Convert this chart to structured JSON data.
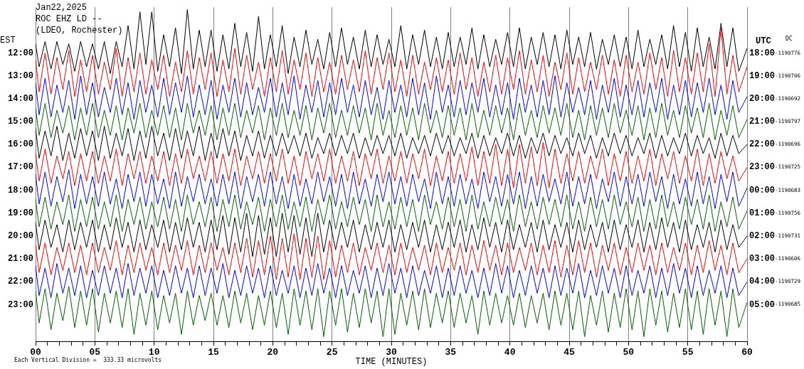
{
  "chart_data": {
    "type": "line",
    "title": "Jan22,2025",
    "subtitle": "ROC EHZ LD --",
    "annotations": [
      "(LDEO, Rochester)",
      "Each Vertical Division =  333.33 microvolts",
      "UTC",
      "DC",
      "18:00",
      "-1190776",
      "19:00",
      "-1190706",
      "20:00",
      "-1190692",
      "21:00",
      "-1190797",
      "22:00",
      "-1190696",
      "23:00",
      "-1190725",
      "00:00",
      "-1190683",
      "01:00",
      "-1190756",
      "02:00",
      "-1190731",
      "03:00",
      "-1190606",
      "04:00",
      "-1190729",
      "05:00",
      "-1190685"
    ],
    "xlabel": "TIME (MINUTES)",
    "ylabel": "EST",
    "x": [
      0,
      0.3,
      0.8,
      1.3,
      1.8,
      2.3,
      2.8,
      3.3,
      3.8,
      4.3,
      4.8,
      5.3,
      5.8,
      6.3,
      6.8,
      7.3,
      7.8,
      8.3,
      8.8,
      9.3,
      9.8,
      10.3,
      10.8,
      11.3,
      11.8,
      12.3,
      12.8,
      13.3,
      13.8,
      14.3,
      14.8,
      15.3,
      15.8,
      16.3,
      16.8,
      17.3,
      17.8,
      18.3,
      18.8,
      19.3,
      19.8,
      20.3,
      20.8,
      21.3,
      21.8,
      22.3,
      22.8,
      23.3,
      23.8,
      24.3,
      24.8,
      25.3,
      25.8,
      26.3,
      26.8,
      27.3,
      27.8,
      28.3,
      28.8,
      29.3,
      29.8,
      30.3,
      30.8,
      31.3,
      31.8,
      32.3,
      32.8,
      33.3,
      33.8,
      34.3,
      34.8,
      35.3,
      35.8,
      36.3,
      36.8,
      37.3,
      37.8,
      38.3,
      38.8,
      39.3,
      39.8,
      40.3,
      40.8,
      41.3,
      41.8,
      42.3,
      42.8,
      43.3,
      43.8,
      44.3,
      44.8,
      45.3,
      45.8,
      46.3,
      46.8,
      47.3,
      47.8,
      48.3,
      48.8,
      49.3,
      49.8,
      50.3,
      50.8,
      51.3,
      51.8,
      52.3,
      52.8,
      53.3,
      53.8,
      54.3,
      54.8,
      55.3,
      55.8,
      56.3,
      56.8,
      57.3,
      57.8,
      58.3,
      58.8,
      59.3,
      60
    ],
    "xlim": [
      0,
      60
    ],
    "xticks": [
      {
        "value": 0,
        "label": "00"
      },
      {
        "value": 1,
        "label": null
      },
      {
        "value": 2,
        "label": null
      },
      {
        "value": 3,
        "label": null
      },
      {
        "value": 4,
        "label": null
      },
      {
        "value": 5,
        "label": "05"
      },
      {
        "value": 6,
        "label": null
      },
      {
        "value": 7,
        "label": null
      },
      {
        "value": 8,
        "label": null
      },
      {
        "value": 9,
        "label": null
      },
      10,
      {
        "value": 11,
        "label": null
      },
      {
        "value": 12,
        "label": null
      },
      {
        "value": 13,
        "label": null
      },
      {
        "value": 14,
        "label": null
      },
      15,
      {
        "value": 16,
        "label": null
      },
      {
        "value": 17,
        "label": null
      },
      {
        "value": 18,
        "label": null
      },
      {
        "value": 19,
        "label": null
      },
      20,
      {
        "value": 21,
        "label": null
      },
      {
        "value": 22,
        "label": null
      },
      {
        "value": 23,
        "label": null
      },
      {
        "value": 24,
        "label": null
      },
      25,
      {
        "value": 26,
        "label": null
      },
      {
        "value": 27,
        "label": null
      },
      {
        "value": 28,
        "label": null
      },
      {
        "value": 29,
        "label": null
      },
      30,
      {
        "value": 31,
        "label": null
      },
      {
        "value": 32,
        "label": null
      },
      {
        "value": 33,
        "label": null
      },
      {
        "value": 34,
        "label": null
      },
      35,
      {
        "value": 36,
        "label": null
      },
      {
        "value": 37,
        "label": null
      },
      {
        "value": 38,
        "label": null
      },
      {
        "value": 39,
        "label": null
      },
      40,
      {
        "value": 41,
        "label": null
      },
      {
        "value": 42,
        "label": null
      },
      {
        "value": 43,
        "label": null
      },
      {
        "value": 44,
        "label": null
      },
      45,
      {
        "value": 46,
        "label": null
      },
      {
        "value": 47,
        "label": null
      },
      {
        "value": 48,
        "label": null
      },
      {
        "value": 49,
        "label": null
      },
      50,
      {
        "value": 51,
        "label": null
      },
      {
        "value": 52,
        "label": null
      },
      {
        "value": 53,
        "label": null
      },
      {
        "value": 54,
        "label": null
      },
      55,
      {
        "value": 56,
        "label": null
      },
      {
        "value": 57,
        "label": null
      },
      {
        "value": 58,
        "label": null
      },
      {
        "value": 59,
        "label": null
      },
      60
    ],
    "ylim": [
      24.6,
      10.0
    ],
    "yticks": [
      {
        "value": 12,
        "label": "12:00"
      },
      {
        "value": 13,
        "label": "13:00"
      },
      {
        "value": 14,
        "label": "14:00"
      },
      {
        "value": 15,
        "label": "15:00"
      },
      {
        "value": 16,
        "label": "16:00"
      },
      {
        "value": 17,
        "label": "17:00"
      },
      {
        "value": 18,
        "label": "18:00"
      },
      {
        "value": 19,
        "label": "19:00"
      },
      {
        "value": 20,
        "label": "20:00"
      },
      {
        "value": 21,
        "label": "21:00"
      },
      {
        "value": 22,
        "label": "22:00"
      },
      {
        "value": 23,
        "label": "23:00"
      }
    ],
    "grid": "x",
    "series": [
      {
        "color": "#000000",
        "values": [
          11.6,
          12.6,
          11.5,
          12.7,
          11.5,
          12.5,
          11.6,
          12.8,
          11.5,
          12.6,
          11.6,
          12.7,
          11.5,
          12.9,
          11.5,
          12.6,
          10.8,
          12.7,
          10.2,
          12.5,
          10.2,
          12.8,
          11.2,
          12.6,
          10.9,
          12.9,
          10.1,
          12.7,
          11.0,
          12.6,
          11.0,
          12.8,
          11.2,
          12.7,
          10.7,
          12.6,
          11.1,
          12.8,
          10.4,
          12.7,
          11.2,
          12.6,
          10.8,
          12.9,
          11.3,
          12.6,
          11.0,
          12.5,
          11.4,
          12.7,
          11.1,
          12.6,
          10.9,
          12.5,
          11.3,
          12.7,
          11.0,
          12.6,
          11.2,
          12.5,
          11.4,
          12.6,
          10.8,
          12.7,
          11.2,
          12.5,
          11.0,
          12.6,
          11.3,
          12.7,
          11.1,
          12.6,
          11.3,
          12.5,
          10.9,
          12.7,
          11.2,
          12.6,
          11.4,
          12.5,
          11.1,
          12.6,
          10.9,
          12.7,
          11.3,
          12.5,
          11.1,
          12.6,
          11.2,
          12.7,
          11.0,
          12.5,
          11.3,
          12.6,
          11.1,
          12.7,
          11.4,
          12.5,
          11.2,
          12.6,
          11.3,
          12.7,
          11.0,
          12.6,
          11.4,
          12.5,
          11.2,
          12.7,
          10.8,
          12.6,
          11.1,
          12.8,
          10.9,
          12.6,
          11.3,
          12.7,
          10.7,
          12.6,
          10.9,
          12.8,
          11.8
        ]
      },
      {
        "color": "#ff0000",
        "values": [
          12.3,
          13.7,
          12.0,
          13.8,
          12.2,
          13.6,
          11.9,
          13.9,
          12.3,
          13.7,
          12.1,
          13.8,
          12.4,
          13.6,
          11.8,
          13.9,
          12.2,
          13.7,
          12.0,
          13.8,
          12.3,
          13.6,
          12.1,
          13.9,
          12.4,
          13.7,
          11.9,
          13.8,
          12.2,
          13.6,
          12.0,
          13.9,
          12.3,
          13.7,
          11.8,
          13.8,
          12.1,
          13.6,
          12.4,
          13.9,
          12.2,
          13.7,
          11.9,
          13.8,
          12.3,
          13.6,
          12.0,
          13.9,
          12.2,
          13.7,
          12.4,
          13.8,
          12.1,
          13.6,
          12.3,
          13.7,
          11.9,
          13.8,
          12.2,
          13.6,
          12.0,
          13.7,
          12.3,
          13.9,
          12.1,
          13.8,
          12.4,
          13.6,
          12.2,
          13.7,
          12.3,
          13.8,
          12.0,
          13.6,
          12.2,
          13.9,
          12.4,
          13.7,
          12.1,
          13.8,
          12.2,
          13.6,
          11.9,
          13.8,
          12.3,
          13.7,
          12.1,
          13.9,
          12.4,
          13.6,
          12.0,
          13.8,
          12.2,
          13.7,
          12.4,
          13.6,
          12.1,
          13.8,
          12.3,
          13.9,
          12.1,
          13.7,
          12.4,
          13.8,
          12.0,
          13.6,
          12.2,
          13.9,
          11.9,
          13.7,
          12.2,
          13.8,
          12.0,
          13.7,
          11.6,
          13.9,
          10.9,
          13.8,
          12.1,
          13.7,
          12.6
        ]
      },
      {
        "color": "#0000ff",
        "values": [
          13.3,
          14.7,
          13.1,
          14.8,
          13.4,
          14.6,
          13.2,
          14.9,
          13.0,
          14.7,
          13.3,
          14.8,
          13.5,
          14.6,
          13.1,
          14.7,
          13.3,
          14.9,
          13.2,
          14.6,
          13.4,
          14.8,
          13.1,
          14.7,
          13.3,
          14.6,
          13.0,
          14.8,
          13.4,
          14.7,
          13.2,
          14.9,
          13.4,
          14.6,
          13.1,
          14.8,
          13.3,
          14.7,
          13.5,
          14.6,
          13.1,
          14.8,
          13.3,
          14.7,
          13.0,
          14.9,
          13.4,
          14.6,
          13.2,
          14.8,
          13.3,
          14.7,
          13.1,
          14.6,
          13.4,
          14.8,
          13.2,
          14.7,
          13.5,
          14.9,
          13.2,
          14.6,
          13.4,
          14.8,
          13.1,
          14.7,
          13.3,
          14.9,
          13.0,
          14.6,
          13.4,
          14.8,
          13.2,
          14.7,
          13.3,
          14.6,
          13.1,
          14.8,
          13.4,
          14.7,
          13.3,
          14.9,
          13.1,
          14.6,
          13.4,
          14.8,
          13.2,
          14.7,
          13.0,
          14.8,
          13.3,
          14.6,
          13.5,
          14.7,
          13.2,
          14.9,
          13.4,
          14.6,
          13.1,
          14.8,
          13.4,
          14.7,
          13.2,
          14.8,
          13.3,
          14.6,
          13.1,
          14.9,
          13.4,
          14.7,
          13.2,
          14.8,
          13.3,
          14.6,
          13.1,
          14.7,
          13.4,
          14.9,
          13.2,
          14.6,
          13.9
        ]
      },
      {
        "color": "#006400",
        "values": [
          14.4,
          15.6,
          14.2,
          15.7,
          14.5,
          15.5,
          14.3,
          15.8,
          14.4,
          15.6,
          14.2,
          15.7,
          14.5,
          15.6,
          14.3,
          15.8,
          14.4,
          15.5,
          14.2,
          15.7,
          14.5,
          15.6,
          14.3,
          15.7,
          14.4,
          15.8,
          14.2,
          15.5,
          14.5,
          15.6,
          14.3,
          15.8,
          14.4,
          15.6,
          14.2,
          15.7,
          14.5,
          15.5,
          14.3,
          15.8,
          14.4,
          15.6,
          14.2,
          15.7,
          14.5,
          15.6,
          14.3,
          15.8,
          14.4,
          15.5,
          14.2,
          15.7,
          14.5,
          15.6,
          14.3,
          15.5,
          14.4,
          15.8,
          14.2,
          15.6,
          14.5,
          15.7,
          14.3,
          15.6,
          14.4,
          15.8,
          14.2,
          15.5,
          14.5,
          15.7,
          14.3,
          15.6,
          14.4,
          15.8,
          14.2,
          15.7,
          14.5,
          15.6,
          14.3,
          15.5,
          14.4,
          15.8,
          14.2,
          15.6,
          14.5,
          15.7,
          14.3,
          15.5,
          14.4,
          15.6,
          14.2,
          15.7,
          14.5,
          15.8,
          14.3,
          15.6,
          14.4,
          15.7,
          14.2,
          15.5,
          14.5,
          15.6,
          14.3,
          15.8,
          14.4,
          15.7,
          14.2,
          15.6,
          14.5,
          15.7,
          14.3,
          15.5,
          14.4,
          15.7,
          14.2,
          15.8,
          14.5,
          15.6,
          14.3,
          15.7,
          14.9
        ]
      },
      {
        "color": "#000000",
        "values": [
          15.3,
          16.6,
          15.4,
          16.5,
          15.2,
          16.7,
          15.5,
          16.6,
          15.3,
          16.5,
          15.4,
          16.7,
          15.2,
          16.6,
          15.5,
          16.5,
          15.3,
          16.7,
          15.4,
          16.6,
          15.2,
          16.5,
          15.5,
          16.7,
          15.3,
          16.6,
          15.4,
          16.5,
          15.2,
          16.7,
          15.5,
          16.6,
          15.3,
          16.5,
          15.4,
          16.7,
          15.6,
          16.5,
          15.4,
          16.6,
          15.6,
          16.5,
          15.5,
          16.4,
          15.6,
          16.5,
          15.5,
          16.6,
          15.7,
          16.4,
          15.5,
          16.5,
          15.6,
          16.4,
          15.5,
          16.6,
          15.7,
          16.5,
          15.6,
          16.4,
          15.6,
          16.5,
          15.5,
          16.6,
          15.7,
          16.4,
          15.6,
          16.5,
          15.5,
          16.4,
          15.6,
          16.5,
          15.7,
          16.4,
          15.5,
          16.6,
          15.6,
          16.5,
          15.7,
          16.4,
          15.5,
          16.5,
          15.6,
          16.6,
          15.7,
          16.4,
          15.5,
          16.5,
          15.6,
          16.4,
          15.7,
          16.5,
          15.5,
          16.4,
          15.6,
          16.6,
          15.7,
          16.5,
          15.5,
          16.4,
          15.6,
          16.5,
          15.7,
          16.4,
          15.5,
          16.6,
          15.6,
          16.5,
          15.7,
          16.4,
          15.5,
          16.5,
          15.6,
          16.4,
          15.7,
          16.6,
          15.5,
          16.5,
          15.6,
          16.4,
          16.0
        ]
      },
      {
        "color": "#ff0000",
        "values": [
          16.4,
          17.6,
          16.2,
          17.7,
          16.5,
          17.5,
          16.3,
          17.8,
          16.4,
          17.6,
          16.3,
          17.7,
          16.5,
          17.6,
          16.2,
          17.8,
          16.4,
          17.5,
          16.3,
          17.7,
          16.5,
          17.6,
          16.3,
          17.8,
          16.4,
          17.7,
          16.2,
          17.5,
          16.5,
          17.6,
          16.3,
          17.7,
          16.4,
          17.6,
          16.2,
          17.8,
          16.5,
          17.5,
          16.3,
          17.7,
          16.4,
          17.6,
          16.2,
          17.7,
          16.5,
          17.8,
          16.3,
          17.5,
          16.4,
          17.6,
          16.2,
          17.7,
          16.5,
          17.6,
          16.3,
          17.8,
          16.4,
          17.5,
          16.2,
          17.7,
          16.5,
          17.6,
          16.3,
          17.7,
          16.4,
          17.5,
          16.2,
          17.8,
          16.5,
          17.6,
          16.3,
          17.7,
          16.4,
          17.6,
          16.1,
          17.8,
          16.3,
          17.7,
          16.0,
          17.8,
          16.2,
          17.9,
          16.0,
          17.7,
          16.1,
          17.8,
          15.9,
          17.9,
          16.2,
          17.7,
          16.4,
          17.6,
          16.3,
          17.7,
          16.5,
          17.5,
          16.2,
          17.8,
          16.4,
          17.6,
          16.3,
          17.7,
          16.5,
          17.6,
          16.2,
          17.8,
          16.4,
          17.5,
          16.3,
          17.7,
          16.5,
          17.6,
          16.2,
          17.8,
          16.4,
          17.7,
          16.3,
          17.5,
          16.5,
          17.6,
          17.0
        ]
      },
      {
        "color": "#0000ff",
        "values": [
          17.3,
          18.6,
          17.2,
          18.7,
          17.4,
          18.5,
          17.1,
          18.8,
          17.3,
          18.6,
          17.4,
          18.7,
          17.2,
          18.6,
          17.5,
          18.8,
          17.3,
          18.5,
          17.2,
          18.7,
          17.3,
          18.6,
          17.5,
          18.8,
          17.2,
          18.7,
          17.4,
          18.5,
          17.3,
          18.6,
          17.5,
          18.7,
          17.3,
          18.6,
          17.2,
          18.8,
          17.4,
          18.5,
          17.3,
          18.7,
          17.2,
          18.6,
          17.4,
          18.8,
          17.3,
          18.7,
          17.5,
          18.6,
          17.2,
          18.5,
          17.4,
          18.7,
          17.3,
          18.8,
          17.2,
          18.6,
          17.5,
          18.7,
          17.3,
          18.5,
          17.2,
          18.6,
          17.4,
          18.7,
          17.3,
          18.5,
          17.5,
          18.8,
          17.2,
          18.6,
          17.4,
          18.7,
          17.3,
          18.6,
          17.5,
          18.8,
          17.2,
          18.5,
          17.4,
          18.7,
          17.3,
          18.6,
          17.2,
          18.8,
          17.4,
          18.7,
          17.3,
          18.5,
          17.5,
          18.6,
          17.2,
          18.7,
          17.4,
          18.6,
          17.3,
          18.8,
          17.5,
          18.5,
          17.2,
          18.7,
          17.4,
          18.6,
          17.3,
          18.7,
          17.2,
          18.5,
          17.4,
          18.8,
          17.3,
          18.6,
          17.5,
          18.7,
          17.2,
          18.6,
          17.4,
          18.8,
          17.3,
          18.5,
          17.2,
          18.7,
          17.9
        ]
      },
      {
        "color": "#006400",
        "values": [
          18.4,
          19.6,
          18.3,
          19.7,
          18.5,
          19.5,
          18.2,
          19.8,
          18.4,
          19.6,
          18.3,
          19.7,
          18.5,
          19.6,
          18.2,
          19.8,
          18.4,
          19.5,
          18.3,
          19.7,
          18.5,
          19.6,
          18.3,
          19.7,
          18.4,
          19.8,
          18.2,
          19.5,
          18.5,
          19.6,
          18.3,
          19.8,
          18.4,
          19.6,
          18.2,
          19.7,
          18.5,
          19.5,
          18.3,
          19.8,
          18.4,
          19.6,
          18.2,
          19.7,
          18.5,
          19.6,
          18.3,
          19.8,
          18.4,
          19.5,
          18.2,
          19.7,
          18.5,
          19.6,
          18.3,
          19.5,
          18.4,
          19.8,
          18.2,
          19.6,
          18.5,
          19.7,
          18.3,
          19.6,
          18.4,
          19.8,
          18.2,
          19.5,
          18.5,
          19.7,
          18.3,
          19.6,
          18.4,
          19.8,
          18.2,
          19.7,
          18.5,
          19.6,
          18.3,
          19.5,
          18.4,
          19.8,
          18.2,
          19.6,
          18.5,
          19.7,
          18.3,
          19.5,
          18.4,
          19.6,
          18.2,
          19.7,
          18.5,
          19.8,
          18.3,
          19.6,
          18.4,
          19.7,
          18.2,
          19.5,
          18.5,
          19.6,
          18.3,
          19.8,
          18.4,
          19.7,
          18.2,
          19.6,
          18.5,
          19.7,
          18.3,
          19.5,
          18.4,
          19.7,
          18.2,
          19.8,
          18.5,
          19.6,
          18.3,
          19.7,
          18.9
        ]
      },
      {
        "color": "#000000",
        "values": [
          19.4,
          20.6,
          19.3,
          20.5,
          19.5,
          20.7,
          19.3,
          20.6,
          19.4,
          20.5,
          19.3,
          20.7,
          19.5,
          20.6,
          19.2,
          20.5,
          19.4,
          20.7,
          19.3,
          20.6,
          19.5,
          20.5,
          19.3,
          20.7,
          19.4,
          20.6,
          19.2,
          20.5,
          19.4,
          20.7,
          19.3,
          20.6,
          19.1,
          20.8,
          19.2,
          20.7,
          19.0,
          20.9,
          19.1,
          20.8,
          19.2,
          20.9,
          19.0,
          20.7,
          19.1,
          20.8,
          19.2,
          20.9,
          19.0,
          20.7,
          19.3,
          20.6,
          19.4,
          20.5,
          19.3,
          20.7,
          19.5,
          20.6,
          19.4,
          20.5,
          19.3,
          20.7,
          19.5,
          20.6,
          19.4,
          20.5,
          19.3,
          20.7,
          19.5,
          20.6,
          19.4,
          20.5,
          19.3,
          20.7,
          19.5,
          20.6,
          19.2,
          20.5,
          19.4,
          20.7,
          19.3,
          20.6,
          19.5,
          20.5,
          19.4,
          20.7,
          19.3,
          20.6,
          19.5,
          20.5,
          19.4,
          20.7,
          19.3,
          20.6,
          19.5,
          20.5,
          19.4,
          20.7,
          19.3,
          20.6,
          19.5,
          20.5,
          19.3,
          20.7,
          19.4,
          20.6,
          19.2,
          20.5,
          19.4,
          20.7,
          19.3,
          20.6,
          19.5,
          20.5,
          19.4,
          20.7,
          19.3,
          20.6,
          19.5,
          20.5,
          20.0
        ]
      },
      {
        "color": "#ff0000",
        "values": [
          20.4,
          21.6,
          20.3,
          21.7,
          20.5,
          21.5,
          20.3,
          21.6,
          20.4,
          21.7,
          20.3,
          21.6,
          20.5,
          21.5,
          20.2,
          21.7,
          20.4,
          21.6,
          20.3,
          21.5,
          20.5,
          21.7,
          20.3,
          21.6,
          20.4,
          21.5,
          20.2,
          21.7,
          20.4,
          21.6,
          20.3,
          21.5,
          20.5,
          21.7,
          20.3,
          21.6,
          20.1,
          21.8,
          20.2,
          21.7,
          20.0,
          21.9,
          20.1,
          21.8,
          19.9,
          21.9,
          20.1,
          21.8,
          20.0,
          21.9,
          20.2,
          21.8,
          20.4,
          21.6,
          20.3,
          21.7,
          20.5,
          21.5,
          20.3,
          21.6,
          20.4,
          21.7,
          20.3,
          21.6,
          20.5,
          21.5,
          20.4,
          21.7,
          20.3,
          21.6,
          20.5,
          21.5,
          20.3,
          21.7,
          20.4,
          21.6,
          20.2,
          21.5,
          20.4,
          21.7,
          20.3,
          21.6,
          20.5,
          21.5,
          20.3,
          21.7,
          20.4,
          21.6,
          20.2,
          21.8,
          20.4,
          21.7,
          20.2,
          21.6,
          20.3,
          21.8,
          20.4,
          21.5,
          20.3,
          21.7,
          20.5,
          21.6,
          20.3,
          21.5,
          20.4,
          21.7,
          20.3,
          21.6,
          20.5,
          21.5,
          20.3,
          21.7,
          20.4,
          21.6,
          20.2,
          21.5,
          20.4,
          21.7,
          20.3,
          21.6,
          21.0
        ]
      },
      {
        "color": "#0000ff",
        "values": [
          21.3,
          22.6,
          21.4,
          22.7,
          21.2,
          22.5,
          21.4,
          22.6,
          21.3,
          22.7,
          21.5,
          22.6,
          21.3,
          22.5,
          21.4,
          22.7,
          21.2,
          22.6,
          21.4,
          22.5,
          21.3,
          22.7,
          21.5,
          22.6,
          21.3,
          22.5,
          21.4,
          22.7,
          21.3,
          22.6,
          21.4,
          22.5,
          21.2,
          22.7,
          21.5,
          22.6,
          21.3,
          22.5,
          21.4,
          22.7,
          21.3,
          22.6,
          21.5,
          22.5,
          21.3,
          22.7,
          21.4,
          22.6,
          21.2,
          22.5,
          21.4,
          22.7,
          21.3,
          22.6,
          21.5,
          22.5,
          21.3,
          22.7,
          21.4,
          22.6,
          21.2,
          22.5,
          21.4,
          22.7,
          21.3,
          22.6,
          21.5,
          22.5,
          21.3,
          22.7,
          21.4,
          22.6,
          21.3,
          22.5,
          21.5,
          22.7,
          21.4,
          22.6,
          21.2,
          22.5,
          21.3,
          22.7,
          21.5,
          22.6,
          21.3,
          22.5,
          21.4,
          22.7,
          21.3,
          22.6,
          21.4,
          22.5,
          21.2,
          22.7,
          21.5,
          22.6,
          21.3,
          22.5,
          21.4,
          22.7,
          21.3,
          22.6,
          21.5,
          22.5,
          21.3,
          22.7,
          21.4,
          22.6,
          21.2,
          22.5,
          21.4,
          22.7,
          21.3,
          22.6,
          21.5,
          22.5,
          21.3,
          22.7,
          21.4,
          22.6,
          22.0
        ]
      },
      {
        "color": "#006400",
        "values": [
          22.4,
          23.8,
          22.3,
          24.1,
          22.5,
          23.7,
          22.2,
          24.0,
          22.4,
          23.9,
          22.3,
          24.2,
          22.5,
          23.8,
          22.4,
          24.0,
          22.3,
          24.3,
          22.5,
          23.9,
          22.4,
          24.1,
          22.6,
          23.8,
          22.5,
          24.3,
          22.4,
          23.9,
          22.6,
          23.7,
          22.5,
          23.9,
          22.6,
          24.0,
          22.4,
          23.8,
          22.5,
          24.1,
          22.6,
          23.9,
          22.4,
          24.0,
          22.5,
          24.3,
          22.3,
          23.9,
          22.4,
          24.1,
          22.3,
          24.4,
          22.4,
          23.9,
          22.3,
          24.2,
          22.5,
          24.0,
          22.3,
          23.8,
          22.4,
          24.4,
          22.3,
          24.3,
          22.5,
          23.9,
          22.4,
          24.1,
          22.3,
          24.0,
          22.5,
          23.8,
          22.4,
          24.0,
          22.5,
          23.8,
          22.6,
          24.3,
          22.4,
          23.9,
          22.5,
          23.8,
          22.6,
          23.9,
          22.5,
          24.0,
          22.6,
          23.8,
          22.5,
          24.1,
          22.4,
          23.9,
          22.5,
          24.1,
          22.4,
          24.4,
          22.6,
          23.9,
          22.4,
          24.2,
          22.5,
          24.0,
          22.3,
          24.1,
          22.4,
          24.4,
          22.3,
          23.9,
          22.4,
          24.2,
          22.5,
          24.0,
          22.3,
          24.1,
          22.4,
          24.3,
          22.3,
          23.9,
          22.4,
          24.4,
          22.3,
          24.0,
          22.9
        ]
      }
    ]
  }
}
